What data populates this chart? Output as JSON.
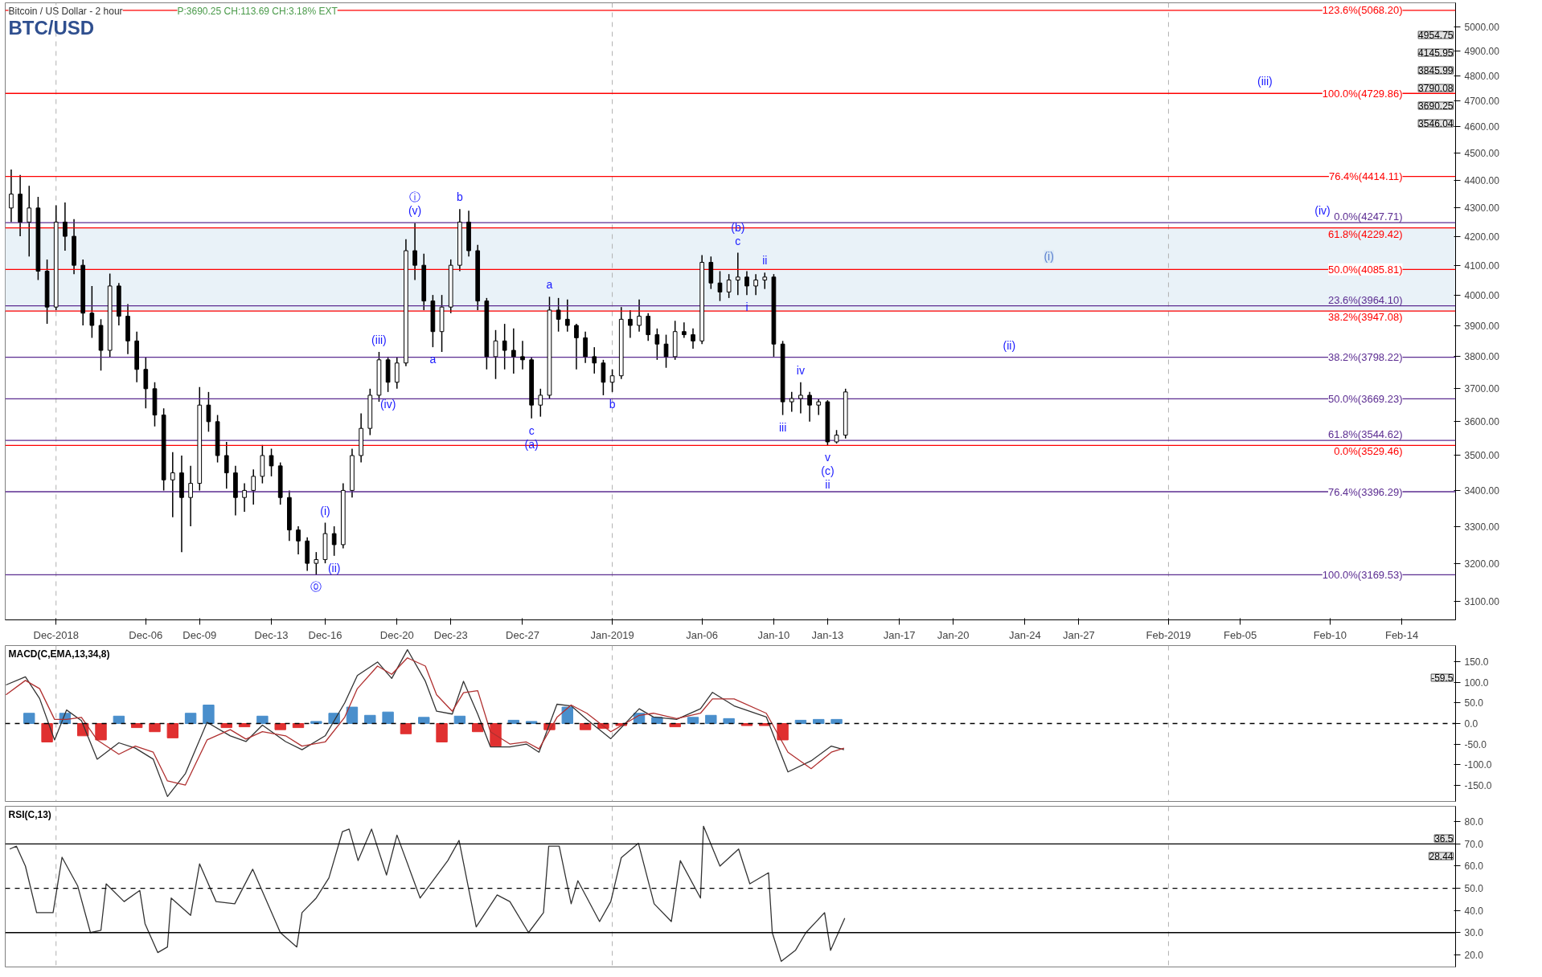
{
  "chart_data": [
    {
      "type": "candlestick",
      "title": "BTC/USD",
      "subtitle": "Bitcoin / US Dollar - 2 hour",
      "color": "#000000",
      "log": true,
      "x": [
        "2018-11-28T12:00",
        "2018-11-29T00:00",
        "2018-11-29T12:00",
        "2018-11-30T00:00",
        "2018-11-30T12:00",
        "2018-12-01T00:00",
        "2018-12-01T12:00",
        "2018-12-02T00:00",
        "2018-12-02T12:00",
        "2018-12-03T00:00",
        "2018-12-03T12:00",
        "2018-12-04T00:00",
        "2018-12-04T12:00",
        "2018-12-05T00:00",
        "2018-12-05T12:00",
        "2018-12-06T00:00",
        "2018-12-06T12:00",
        "2018-12-07T00:00",
        "2018-12-07T12:00",
        "2018-12-08T00:00",
        "2018-12-08T12:00",
        "2018-12-09T00:00",
        "2018-12-09T12:00",
        "2018-12-10T00:00",
        "2018-12-10T12:00",
        "2018-12-11T00:00",
        "2018-12-11T12:00",
        "2018-12-12T00:00",
        "2018-12-12T12:00",
        "2018-12-13T00:00",
        "2018-12-13T12:00",
        "2018-12-14T00:00",
        "2018-12-14T12:00",
        "2018-12-15T00:00",
        "2018-12-15T12:00",
        "2018-12-16T00:00",
        "2018-12-16T12:00",
        "2018-12-17T00:00",
        "2018-12-17T12:00",
        "2018-12-18T00:00",
        "2018-12-18T12:00",
        "2018-12-19T00:00",
        "2018-12-19T12:00",
        "2018-12-20T00:00",
        "2018-12-20T12:00",
        "2018-12-21T00:00",
        "2018-12-21T12:00",
        "2018-12-22T00:00",
        "2018-12-22T12:00",
        "2018-12-23T00:00",
        "2018-12-23T12:00",
        "2018-12-24T00:00",
        "2018-12-24T12:00",
        "2018-12-25T00:00",
        "2018-12-25T12:00",
        "2018-12-26T00:00",
        "2018-12-26T12:00",
        "2018-12-27T00:00",
        "2018-12-27T12:00",
        "2018-12-28T00:00",
        "2018-12-28T12:00",
        "2018-12-29T00:00",
        "2018-12-29T12:00",
        "2018-12-30T00:00",
        "2018-12-30T12:00",
        "2018-12-31T00:00",
        "2018-12-31T12:00",
        "2019-01-01T00:00",
        "2019-01-01T12:00",
        "2019-01-02T00:00",
        "2019-01-02T12:00",
        "2019-01-03T00:00",
        "2019-01-03T12:00",
        "2019-01-04T00:00",
        "2019-01-04T12:00",
        "2019-01-05T00:00",
        "2019-01-05T12:00",
        "2019-01-06T00:00",
        "2019-01-06T12:00",
        "2019-01-07T00:00",
        "2019-01-07T12:00",
        "2019-01-08T00:00",
        "2019-01-08T12:00",
        "2019-01-09T00:00",
        "2019-01-09T12:00",
        "2019-01-10T00:00",
        "2019-01-10T12:00",
        "2019-01-11T00:00",
        "2019-01-11T12:00",
        "2019-01-12T00:00",
        "2019-01-12T12:00",
        "2019-01-13T00:00",
        "2019-01-13T12:00",
        "2019-01-14T00:00"
      ],
      "ohlc": [
        [
          4300,
          4440,
          4250,
          4350
        ],
        [
          4350,
          4420,
          4200,
          4250
        ],
        [
          4250,
          4380,
          4130,
          4300
        ],
        [
          4300,
          4340,
          4050,
          4080
        ],
        [
          4080,
          4120,
          3905,
          3960
        ],
        [
          3960,
          4310,
          3950,
          4250
        ],
        [
          4250,
          4320,
          4150,
          4200
        ],
        [
          4200,
          4260,
          4070,
          4100
        ],
        [
          4100,
          4120,
          3900,
          3940
        ],
        [
          3940,
          4030,
          3860,
          3900
        ],
        [
          3900,
          3920,
          3756,
          3820
        ],
        [
          3820,
          4072,
          3800,
          4030
        ],
        [
          4030,
          4040,
          3900,
          3930
        ],
        [
          3930,
          3970,
          3808,
          3850
        ],
        [
          3850,
          3880,
          3720,
          3760
        ],
        [
          3760,
          3800,
          3640,
          3700
        ],
        [
          3700,
          3720,
          3586,
          3620
        ],
        [
          3620,
          3640,
          3400,
          3430
        ],
        [
          3430,
          3510,
          3325,
          3450
        ],
        [
          3450,
          3500,
          3230,
          3380
        ],
        [
          3380,
          3470,
          3300,
          3420
        ],
        [
          3420,
          3705,
          3400,
          3650
        ],
        [
          3650,
          3690,
          3570,
          3600
        ],
        [
          3600,
          3620,
          3480,
          3500
        ],
        [
          3500,
          3540,
          3405,
          3450
        ],
        [
          3450,
          3470,
          3330,
          3380
        ],
        [
          3380,
          3420,
          3340,
          3400
        ],
        [
          3400,
          3460,
          3360,
          3440
        ],
        [
          3440,
          3531,
          3420,
          3500
        ],
        [
          3500,
          3520,
          3440,
          3470
        ],
        [
          3470,
          3480,
          3360,
          3380
        ],
        [
          3380,
          3400,
          3260,
          3290
        ],
        [
          3290,
          3300,
          3224,
          3260
        ],
        [
          3260,
          3270,
          3180,
          3200
        ],
        [
          3200,
          3230,
          3170,
          3210
        ],
        [
          3210,
          3310,
          3200,
          3280
        ],
        [
          3280,
          3300,
          3220,
          3250
        ],
        [
          3250,
          3420,
          3240,
          3400
        ],
        [
          3400,
          3520,
          3380,
          3500
        ],
        [
          3500,
          3625,
          3480,
          3580
        ],
        [
          3580,
          3700,
          3560,
          3680
        ],
        [
          3680,
          3815,
          3660,
          3790
        ],
        [
          3790,
          3800,
          3690,
          3720
        ],
        [
          3720,
          3800,
          3700,
          3780
        ],
        [
          3780,
          4190,
          3770,
          4150
        ],
        [
          4150,
          4247,
          4050,
          4100
        ],
        [
          4100,
          4140,
          3950,
          3980
        ],
        [
          3980,
          4000,
          3830,
          3880
        ],
        [
          3880,
          4000,
          3815,
          3960
        ],
        [
          3960,
          4120,
          3940,
          4100
        ],
        [
          4100,
          4296,
          4080,
          4250
        ],
        [
          4250,
          4290,
          4130,
          4150
        ],
        [
          4150,
          4170,
          3950,
          3980
        ],
        [
          3980,
          3990,
          3760,
          3800
        ],
        [
          3800,
          3885,
          3730,
          3850
        ],
        [
          3850,
          3905,
          3760,
          3820
        ],
        [
          3820,
          3890,
          3747,
          3800
        ],
        [
          3800,
          3850,
          3760,
          3790
        ],
        [
          3790,
          3800,
          3610,
          3650
        ],
        [
          3650,
          3700,
          3615,
          3680
        ],
        [
          3680,
          3994,
          3670,
          3950
        ],
        [
          3950,
          3990,
          3880,
          3920
        ],
        [
          3920,
          3985,
          3880,
          3900
        ],
        [
          3900,
          3905,
          3760,
          3860
        ],
        [
          3860,
          3880,
          3780,
          3800
        ],
        [
          3800,
          3830,
          3747,
          3780
        ],
        [
          3780,
          3790,
          3680,
          3720
        ],
        [
          3720,
          3760,
          3690,
          3740
        ],
        [
          3740,
          3960,
          3730,
          3920
        ],
        [
          3920,
          3950,
          3860,
          3900
        ],
        [
          3900,
          3985,
          3880,
          3930
        ],
        [
          3930,
          3940,
          3850,
          3870
        ],
        [
          3870,
          3890,
          3790,
          3840
        ],
        [
          3840,
          3870,
          3765,
          3800
        ],
        [
          3800,
          3915,
          3790,
          3880
        ],
        [
          3880,
          3910,
          3860,
          3870
        ],
        [
          3870,
          3890,
          3825,
          3850
        ],
        [
          3850,
          4135,
          3840,
          4110
        ],
        [
          4110,
          4130,
          4020,
          4040
        ],
        [
          4040,
          4080,
          3980,
          4010
        ],
        [
          4010,
          4070,
          3990,
          4050
        ],
        [
          4050,
          4143,
          4000,
          4060
        ],
        [
          4060,
          4080,
          4000,
          4030
        ],
        [
          4030,
          4070,
          4000,
          4050
        ],
        [
          4050,
          4075,
          4020,
          4060
        ],
        [
          4060,
          4070,
          3800,
          3840
        ],
        [
          3840,
          3850,
          3620,
          3660
        ],
        [
          3660,
          3690,
          3630,
          3670
        ],
        [
          3670,
          3720,
          3625,
          3680
        ],
        [
          3680,
          3690,
          3600,
          3650
        ],
        [
          3650,
          3670,
          3620,
          3660
        ],
        [
          3660,
          3665,
          3530,
          3540
        ],
        [
          3540,
          3575,
          3535,
          3560
        ],
        [
          3560,
          3700,
          3550,
          3690
        ]
      ],
      "xlim": [
        "2018-11-28T04:00",
        "2019-02-17T00:00"
      ],
      "ylim": [
        3053,
        5100
      ],
      "xticks": [
        {
          "value": "2018-12-01",
          "label": "Dec-2018"
        },
        {
          "value": "2018-12-06",
          "label": "Dec-06"
        },
        {
          "value": "2018-12-09",
          "label": "Dec-09"
        },
        {
          "value": "2018-12-13",
          "label": "Dec-13"
        },
        {
          "value": "2018-12-16",
          "label": "Dec-16"
        },
        {
          "value": "2018-12-20",
          "label": "Dec-20"
        },
        {
          "value": "2018-12-23",
          "label": "Dec-23"
        },
        {
          "value": "2018-12-27",
          "label": "Dec-27"
        },
        {
          "value": "2019-01-01",
          "label": "Jan-2019"
        },
        {
          "value": "2019-01-06",
          "label": "Jan-06"
        },
        {
          "value": "2019-01-10",
          "label": "Jan-10"
        },
        {
          "value": "2019-01-13",
          "label": "Jan-13"
        },
        {
          "value": "2019-01-17",
          "label": "Jan-17"
        },
        {
          "value": "2019-01-20",
          "label": "Jan-20"
        },
        {
          "value": "2019-01-24",
          "label": "Jan-24"
        },
        {
          "value": "2019-01-27",
          "label": "Jan-27"
        },
        {
          "value": "2019-02-01",
          "label": "Feb-2019"
        },
        {
          "value": "2019-02-05",
          "label": "Feb-05"
        },
        {
          "value": "2019-02-10",
          "label": "Feb-10"
        },
        {
          "value": "2019-02-14",
          "label": "Feb-14"
        }
      ],
      "yticks": [
        {
          "value": 3100,
          "label": "3100.00"
        },
        {
          "value": 3200,
          "label": "3200.00"
        },
        {
          "value": 3300,
          "label": "3300.00"
        },
        {
          "value": 3400,
          "label": "3400.00"
        },
        {
          "value": 3500,
          "label": "3500.00"
        },
        {
          "value": 3600,
          "label": "3600.00"
        },
        {
          "value": 3700,
          "label": "3700.00"
        },
        {
          "value": 3800,
          "label": "3800.00"
        },
        {
          "value": 3900,
          "label": "3900.00"
        },
        {
          "value": 4000,
          "label": "4000.00"
        },
        {
          "value": 4100,
          "label": "4100.00"
        },
        {
          "value": 4200,
          "label": "4200.00"
        },
        {
          "value": 4300,
          "label": "4300.00"
        },
        {
          "value": 4400,
          "label": "4400.00"
        },
        {
          "value": 4500,
          "label": "4500.00"
        },
        {
          "value": 4600,
          "label": "4600.00"
        },
        {
          "value": 4700,
          "label": "4700.00"
        },
        {
          "value": 4800,
          "label": "4800.00"
        },
        {
          "value": 4900,
          "label": "4900.00"
        },
        {
          "value": 5000,
          "label": "5000.00"
        }
      ],
      "bands": [
        {
          "axis": "y",
          "from": 3947.08,
          "to": 4229.42,
          "color": "#dbe9f4",
          "label": "(i)"
        }
      ],
      "ref_lines": [
        {
          "axis": "x",
          "value": "2018-12-01",
          "color": "#b0b0b0",
          "line_style": "dashed"
        },
        {
          "axis": "x",
          "value": "2019-01-01",
          "color": "#b0b0b0",
          "line_style": "dashed"
        },
        {
          "axis": "x",
          "value": "2019-02-01",
          "color": "#b0b0b0",
          "line_style": "dashed"
        },
        {
          "axis": "y",
          "value": 4247.71,
          "label": "0.0%(4247.71)",
          "color": "#5b2c91"
        },
        {
          "axis": "y",
          "value": 3964.1,
          "label": "23.6%(3964.10)",
          "color": "#5b2c91"
        },
        {
          "axis": "y",
          "value": 3798.22,
          "label": "38.2%(3798.22)",
          "color": "#5b2c91"
        },
        {
          "axis": "y",
          "value": 3669.23,
          "label": "50.0%(3669.23)",
          "color": "#5b2c91"
        },
        {
          "axis": "y",
          "value": 3544.62,
          "label": "61.8%(3544.62)",
          "color": "#5b2c91"
        },
        {
          "axis": "y",
          "value": 3396.29,
          "label": "76.4%(3396.29)",
          "color": "#5b2c91"
        },
        {
          "axis": "y",
          "value": 3169.53,
          "label": "100.0%(3169.53)",
          "color": "#5b2c91"
        },
        {
          "axis": "y",
          "value": 5068.2,
          "label": "123.6%(5068.20)",
          "color": "#ff0000"
        },
        {
          "axis": "y",
          "value": 4729.86,
          "label": "100.0%(4729.86)",
          "color": "#ff0000"
        },
        {
          "axis": "y",
          "value": 4414.11,
          "label": "76.4%(4414.11)",
          "color": "#ff0000"
        },
        {
          "axis": "y",
          "value": 4229.42,
          "label": "61.8%(4229.42)",
          "color": "#ff0000"
        },
        {
          "axis": "y",
          "value": 4085.81,
          "label": "50.0%(4085.81)",
          "color": "#ff0000"
        },
        {
          "axis": "y",
          "value": 3947.08,
          "label": "38.2%(3947.08)",
          "color": "#ff0000"
        },
        {
          "axis": "y",
          "value": 3529.46,
          "label": "0.0%(3529.46)",
          "color": "#ff0000"
        }
      ],
      "annotations": [
        "P:3690.25 CH:113.69 CH:3.18% EXT",
        {
          "text": "⓪",
          "x": "2018-12-15T12:00",
          "y": 3170
        },
        {
          "text": "(i)",
          "x": "2018-12-16T00:00",
          "y": 3310
        },
        {
          "text": "(ii)",
          "x": "2018-12-16T12:00",
          "y": 3220
        },
        {
          "text": "(iii)",
          "x": "2018-12-19T00:00",
          "y": 3815
        },
        {
          "text": "(iv)",
          "x": "2018-12-19T12:00",
          "y": 3690
        },
        {
          "text": "(v)",
          "x": "2018-12-21T00:00",
          "y": 4247
        },
        {
          "text": "ⓘ",
          "x": "2018-12-21T00:00",
          "y": 4247
        },
        {
          "text": "a",
          "x": "2018-12-22T00:00",
          "y": 3830
        },
        {
          "text": "b",
          "x": "2018-12-23T12:00",
          "y": 4296
        },
        {
          "text": "c",
          "x": "2018-12-27T12:00",
          "y": 3610
        },
        {
          "text": "(a)",
          "x": "2018-12-27T12:00",
          "y": 3610
        },
        {
          "text": "a",
          "x": "2018-12-28T12:00",
          "y": 3994
        },
        {
          "text": "b",
          "x": "2019-01-01T00:00",
          "y": 3690
        },
        {
          "text": "c",
          "x": "2019-01-08T00:00",
          "y": 4143
        },
        {
          "text": "(b)",
          "x": "2019-01-08T00:00",
          "y": 4143
        },
        {
          "text": "i",
          "x": "2019-01-08T12:00",
          "y": 4000
        },
        {
          "text": "ii",
          "x": "2019-01-09T12:00",
          "y": 4075
        },
        {
          "text": "iii",
          "x": "2019-01-10T12:00",
          "y": 3620
        },
        {
          "text": "iv",
          "x": "2019-01-11T12:00",
          "y": 3720
        },
        {
          "text": "v",
          "x": "2019-01-13T00:00",
          "y": 3530
        },
        {
          "text": "(c)",
          "x": "2019-01-13T00:00",
          "y": 3530
        },
        {
          "text": "ii",
          "x": "2019-01-13T00:00",
          "y": 3530
        },
        {
          "text": "(ii)",
          "x": "2019-01-23T03:00",
          "y": 3798.22
        },
        {
          "text": "(iii)",
          "x": "2019-02-06T09:00",
          "y": 4729.86
        },
        {
          "text": "(iv)",
          "x": "2019-02-09T14:00",
          "y": 4247.71
        },
        "4954.75",
        "4145.95",
        "3845.99",
        "3790.08",
        "3690.25",
        "3546.04"
      ]
    },
    {
      "type": "line",
      "title": "MACD(C,EMA,13,34,8)",
      "x": [
        "2018-11-28T05:00",
        "2018-11-29T07:00",
        "2018-11-30T02:00",
        "2018-11-30T22:00",
        "2018-12-01T14:00",
        "2018-12-02T10:00",
        "2018-12-03T07:00",
        "2018-12-04T12:00",
        "2018-12-05T10:00",
        "2018-12-06T10:00",
        "2018-12-07T05:00",
        "2018-12-08T05:00",
        "2018-12-09T10:00",
        "2018-12-10T17:00",
        "2018-12-11T14:00",
        "2018-12-12T12:00",
        "2018-12-13T19:00",
        "2018-12-14T17:00",
        "2018-12-16T00:00",
        "2018-12-17T02:00",
        "2018-12-17T19:00",
        "2018-12-18T22:00",
        "2018-12-19T17:00",
        "2018-12-20T14:00",
        "2018-12-21T14:00",
        "2018-12-22T05:00",
        "2018-12-23T02:00",
        "2018-12-23T17:00",
        "2018-12-24T12:00",
        "2018-12-25T05:00",
        "2018-12-26T07:00",
        "2018-12-27T05:00",
        "2018-12-27T22:00",
        "2018-12-28T22:00",
        "2018-12-29T17:00",
        "2018-12-30T14:00",
        "2018-12-31T22:00",
        "2019-01-02T12:00",
        "2019-01-03T07:00",
        "2019-01-04T14:00",
        "2019-01-05T22:00",
        "2019-01-06T14:00",
        "2019-01-07T19:00",
        "2019-01-09T14:00",
        "2019-01-10T19:00",
        "2019-01-12T02:00",
        "2019-01-13T05:00",
        "2019-01-13T22:00"
      ],
      "series": [
        {
          "color": "#333333",
          "values": [
            94,
            114,
            61,
            -40,
            33,
            7,
            -87,
            -47,
            -60,
            -87,
            -178,
            -122,
            3,
            -30,
            -44,
            -4,
            -44,
            -64,
            -30,
            50,
            117,
            150,
            110,
            180,
            103,
            30,
            23,
            103,
            23,
            -57,
            -57,
            -50,
            -70,
            47,
            43,
            10,
            -37,
            36,
            16,
            10,
            36,
            76,
            43,
            16,
            -118,
            -91,
            -55,
            -64
          ]
        },
        {
          "color": "#b03030",
          "values": [
            70,
            105,
            85,
            10,
            10,
            15,
            -40,
            -75,
            -55,
            -70,
            -140,
            -150,
            -40,
            -15,
            -38,
            -20,
            -30,
            -55,
            -45,
            15,
            85,
            140,
            120,
            160,
            140,
            70,
            30,
            75,
            80,
            -20,
            -50,
            -45,
            -62,
            15,
            45,
            25,
            -20,
            20,
            25,
            12,
            25,
            60,
            60,
            25,
            -70,
            -110,
            -70,
            -60
          ]
        },
        {
          "type": "bar",
          "x": [
            "2018-11-29T12:00",
            "2018-11-30T12:00",
            "2018-12-01T12:00",
            "2018-12-02T12:00",
            "2018-12-03T12:00",
            "2018-12-04T12:00",
            "2018-12-05T12:00",
            "2018-12-06T12:00",
            "2018-12-07T12:00",
            "2018-12-08T12:00",
            "2018-12-09T12:00",
            "2018-12-10T12:00",
            "2018-12-11T12:00",
            "2018-12-12T12:00",
            "2018-12-13T12:00",
            "2018-12-14T12:00",
            "2018-12-15T12:00",
            "2018-12-16T12:00",
            "2018-12-17T12:00",
            "2018-12-18T12:00",
            "2018-12-19T12:00",
            "2018-12-20T12:00",
            "2018-12-21T12:00",
            "2018-12-22T12:00",
            "2018-12-23T12:00",
            "2018-12-24T12:00",
            "2018-12-25T12:00",
            "2018-12-26T12:00",
            "2018-12-27T12:00",
            "2018-12-28T12:00",
            "2018-12-29T12:00",
            "2018-12-30T12:00",
            "2018-12-31T12:00",
            "2019-01-01T12:00",
            "2019-01-02T12:00",
            "2019-01-03T12:00",
            "2019-01-04T12:00",
            "2019-01-05T12:00",
            "2019-01-06T12:00",
            "2019-01-07T12:00",
            "2019-01-08T12:00",
            "2019-01-09T12:00",
            "2019-01-10T12:00",
            "2019-01-11T12:00",
            "2019-01-12T12:00",
            "2019-01-13T12:00"
          ],
          "values": [
            25,
            -45,
            25,
            -30,
            -40,
            18,
            -10,
            -20,
            -35,
            25,
            45,
            -10,
            -8,
            18,
            -15,
            -10,
            5,
            25,
            40,
            20,
            28,
            -25,
            15,
            -45,
            18,
            -20,
            -55,
            8,
            5,
            -15,
            40,
            -15,
            -12,
            -5,
            25,
            15,
            -8,
            15,
            20,
            12,
            -5,
            -5,
            -40,
            8,
            10,
            10
          ],
          "colors": [
            "#4a8fcc",
            "#e03030",
            "#4a8fcc",
            "#e03030",
            "#e03030",
            "#4a8fcc",
            "#e03030",
            "#e03030",
            "#e03030",
            "#4a8fcc",
            "#4a8fcc",
            "#e03030",
            "#e03030",
            "#4a8fcc",
            "#e03030",
            "#e03030",
            "#4a8fcc",
            "#4a8fcc",
            "#4a8fcc",
            "#4a8fcc",
            "#4a8fcc",
            "#e03030",
            "#4a8fcc",
            "#e03030",
            "#4a8fcc",
            "#e03030",
            "#e03030",
            "#4a8fcc",
            "#4a8fcc",
            "#e03030",
            "#4a8fcc",
            "#e03030",
            "#e03030",
            "#e03030",
            "#4a8fcc",
            "#4a8fcc",
            "#e03030",
            "#4a8fcc",
            "#4a8fcc",
            "#4a8fcc",
            "#e03030",
            "#e03030",
            "#e03030",
            "#4a8fcc",
            "#4a8fcc",
            "#4a8fcc"
          ]
        }
      ],
      "xlim": [
        "2018-11-28T04:00",
        "2019-02-17T00:00"
      ],
      "ylim": [
        -190,
        190
      ],
      "yticks": [
        {
          "value": -150,
          "label": "-150.0"
        },
        {
          "value": -100,
          "label": "-100.0"
        },
        {
          "value": -50,
          "label": "-50.0"
        },
        {
          "value": 0,
          "label": "0.0"
        },
        {
          "value": 50,
          "label": "50.0"
        },
        {
          "value": 100,
          "label": "100.0"
        },
        {
          "value": 150,
          "label": "150.0"
        }
      ],
      "tick_labels": "y",
      "ref_lines": [
        {
          "axis": "y",
          "value": 0,
          "color": "#000000",
          "line_style": "dashed"
        },
        {
          "axis": "x",
          "value": "2018-12-01",
          "color": "#b0b0b0",
          "line_style": "dashed"
        },
        {
          "axis": "x",
          "value": "2019-01-01",
          "color": "#b0b0b0",
          "line_style": "dashed"
        },
        {
          "axis": "x",
          "value": "2019-02-01",
          "color": "#b0b0b0",
          "line_style": "dashed"
        }
      ],
      "annotations": [
        "-59.5"
      ]
    },
    {
      "type": "line",
      "title": "RSI(C,13)",
      "x": [
        "2018-11-28T10:00",
        "2018-11-28T19:00",
        "2018-11-29T07:00",
        "2018-11-29T22:00",
        "2018-11-30T20:00",
        "2018-12-01T08:00",
        "2018-12-02T05:00",
        "2018-12-02T22:00",
        "2018-12-03T12:00",
        "2018-12-03T19:00",
        "2018-12-04T19:00",
        "2018-12-05T16:00",
        "2018-12-05T23:00",
        "2018-12-06T16:00",
        "2018-12-07T05:00",
        "2018-12-07T10:00",
        "2018-12-08T12:00",
        "2018-12-09T00:00",
        "2018-12-09T22:00",
        "2018-12-10T23:00",
        "2018-12-11T23:00",
        "2018-12-13T12:00",
        "2018-12-14T10:00",
        "2018-12-14T17:00",
        "2018-12-15T12:00",
        "2018-12-16T05:00",
        "2018-12-16T23:00",
        "2018-12-17T08:00",
        "2018-12-17T20:00",
        "2018-12-18T14:00",
        "2018-12-19T10:00",
        "2018-12-20T00:00",
        "2018-12-21T07:00",
        "2018-12-22T20:00",
        "2018-12-23T11:00",
        "2018-12-24T10:00",
        "2018-12-25T14:00",
        "2018-12-26T07:00",
        "2018-12-27T08:00",
        "2018-12-28T04:00",
        "2018-12-28T11:00",
        "2018-12-29T01:00",
        "2018-12-29T17:00",
        "2018-12-30T02:00",
        "2018-12-31T07:00",
        "2018-12-31T22:00",
        "2019-01-01T12:00",
        "2019-01-02T11:00",
        "2019-01-03T08:00",
        "2019-01-04T07:00",
        "2019-01-04T19:00",
        "2019-01-05T22:00",
        "2019-01-06T02:00",
        "2019-01-07T00:00",
        "2019-01-08T01:00",
        "2019-01-08T16:00",
        "2019-01-09T17:00",
        "2019-01-09T22:00",
        "2019-01-10T10:00",
        "2019-01-11T05:00",
        "2019-01-11T19:00",
        "2019-01-12T20:00",
        "2019-01-13T04:00",
        "2019-01-13T23:00"
      ],
      "series": [
        {
          "color": "#333333",
          "values": [
            67.7,
            69,
            60,
            39,
            39,
            64,
            51,
            30,
            31,
            52,
            44,
            49,
            34,
            21,
            23.5,
            45.6,
            37.8,
            61,
            44,
            43,
            58.6,
            30,
            23.5,
            39,
            45.6,
            54.7,
            75.5,
            76.7,
            62.5,
            76.7,
            56,
            74,
            45.6,
            62.5,
            71.6,
            32.6,
            47,
            44,
            30,
            39,
            69,
            69,
            43,
            53.4,
            35,
            44,
            63.8,
            70.3,
            43,
            35,
            62.5,
            45.6,
            78,
            60,
            67.7,
            52,
            57,
            30,
            17,
            22,
            30,
            39,
            22,
            36.5
          ]
        }
      ],
      "xlim": [
        "2018-11-28T04:00",
        "2019-02-17T00:00"
      ],
      "ylim": [
        14.5,
        87
      ],
      "yticks": [
        {
          "value": 20,
          "label": "20.0"
        },
        {
          "value": 30,
          "label": "30.0"
        },
        {
          "value": 40,
          "label": "40.0"
        },
        {
          "value": 50,
          "label": "50.0"
        },
        {
          "value": 60,
          "label": "60.0"
        },
        {
          "value": 70,
          "label": "70.0"
        },
        {
          "value": 80,
          "label": "80.0"
        }
      ],
      "tick_labels": "y",
      "ref_lines": [
        {
          "axis": "y",
          "value": 70,
          "color": "#000000",
          "line_style": "solid"
        },
        {
          "axis": "y",
          "value": 50,
          "color": "#000000",
          "line_style": "dashed"
        },
        {
          "axis": "y",
          "value": 30,
          "color": "#000000",
          "line_style": "solid"
        },
        {
          "axis": "x",
          "value": "2018-12-01",
          "color": "#b0b0b0",
          "line_style": "dashed"
        },
        {
          "axis": "x",
          "value": "2019-01-01",
          "color": "#b0b0b0",
          "line_style": "dashed"
        },
        {
          "axis": "x",
          "value": "2019-02-01",
          "color": "#b0b0b0",
          "line_style": "dashed"
        }
      ],
      "annotations": [
        "36.5",
        "28.44"
      ]
    }
  ]
}
